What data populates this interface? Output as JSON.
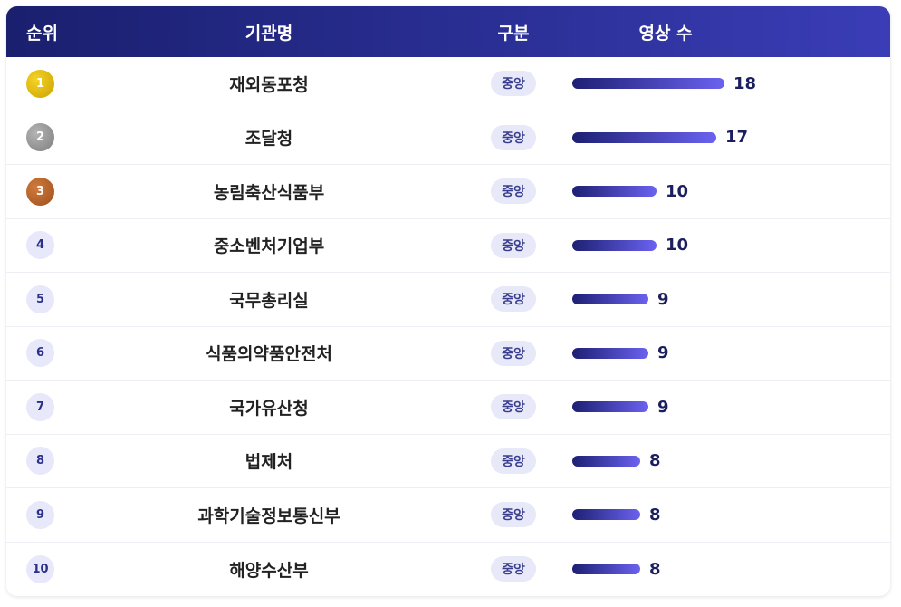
{
  "header": {
    "rank": "순위",
    "org": "기관명",
    "type": "구분",
    "count": "영상 수"
  },
  "rows": [
    {
      "rank": "1",
      "org": "재외동포청",
      "type": "중앙",
      "count": "18",
      "medal": "gold"
    },
    {
      "rank": "2",
      "org": "조달청",
      "type": "중앙",
      "count": "17",
      "medal": "silver"
    },
    {
      "rank": "3",
      "org": "농림축산식품부",
      "type": "중앙",
      "count": "10",
      "medal": "bronze"
    },
    {
      "rank": "4",
      "org": "중소벤처기업부",
      "type": "중앙",
      "count": "10",
      "medal": ""
    },
    {
      "rank": "5",
      "org": "국무총리실",
      "type": "중앙",
      "count": "9",
      "medal": ""
    },
    {
      "rank": "6",
      "org": "식품의약품안전처",
      "type": "중앙",
      "count": "9",
      "medal": ""
    },
    {
      "rank": "7",
      "org": "국가유산청",
      "type": "중앙",
      "count": "9",
      "medal": ""
    },
    {
      "rank": "8",
      "org": "법제처",
      "type": "중앙",
      "count": "8",
      "medal": ""
    },
    {
      "rank": "9",
      "org": "과학기술정보통신부",
      "type": "중앙",
      "count": "8",
      "medal": ""
    },
    {
      "rank": "10",
      "org": "해양수산부",
      "type": "중앙",
      "count": "8",
      "medal": ""
    }
  ],
  "colors": {
    "header_start": "#1a1f6e",
    "header_end": "#3a3db6",
    "bar_start": "#1d2073",
    "bar_end": "#6b62f0",
    "gold": "#c9a200",
    "silver": "#7e7e7e",
    "bronze": "#9c4f1c"
  }
}
